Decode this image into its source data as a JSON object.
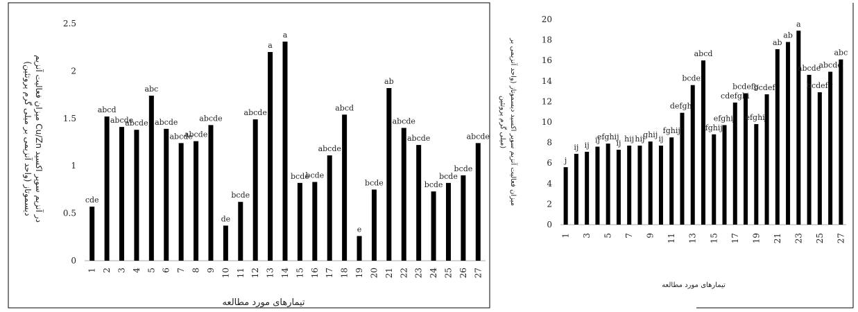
{
  "chart_data": [
    {
      "type": "bar",
      "categories": [
        "1",
        "2",
        "3",
        "4",
        "5",
        "6",
        "7",
        "8",
        "9",
        "10",
        "11",
        "12",
        "13",
        "14",
        "15",
        "16",
        "17",
        "18",
        "19",
        "20",
        "21",
        "22",
        "23",
        "24",
        "25",
        "26",
        "27"
      ],
      "values": [
        0.57,
        1.52,
        1.41,
        1.38,
        1.74,
        1.39,
        1.24,
        1.26,
        1.43,
        0.37,
        0.62,
        1.49,
        2.2,
        2.31,
        0.82,
        0.83,
        1.11,
        1.54,
        0.26,
        0.75,
        1.82,
        1.4,
        1.22,
        0.73,
        0.82,
        0.9,
        1.24
      ],
      "labels": [
        "cde",
        "abcd",
        "abcde",
        "abcde",
        "abc",
        "abcde",
        "abcde",
        "abcde",
        "abcde",
        "de",
        "bcde",
        "abcde",
        "a",
        "a",
        "bcde",
        "bcde",
        "abcde",
        "abcd",
        "e",
        "bcde",
        "ab",
        "abcde",
        "abcde",
        "bcde",
        "bcde",
        "bcde",
        "abcde"
      ],
      "ylim": [
        0,
        2.5
      ],
      "yticks": [
        "0",
        "0.5",
        "1",
        "1.5",
        "2",
        "2.5"
      ],
      "ylabel_line1": "میزان فعالیت آنزیم Cu/Zn در آنزیم سوپر اکسید",
      "ylabel_line2": "دیسموتاز (واحد آنزیمی بر میلی گرم پروتئین)",
      "xlabel": "تیمارهای مورد مطالعه",
      "grid": false,
      "bar_color": "#000000"
    },
    {
      "type": "bar",
      "categories": [
        "1",
        "2",
        "3",
        "4",
        "5",
        "6",
        "7",
        "8",
        "9",
        "10",
        "11",
        "12",
        "13",
        "14",
        "15",
        "16",
        "17",
        "18",
        "19",
        "20",
        "21",
        "22",
        "23",
        "24",
        "25",
        "26",
        "27"
      ],
      "values": [
        5.6,
        6.9,
        7.1,
        7.6,
        7.9,
        7.3,
        7.7,
        7.7,
        8.1,
        7.7,
        8.5,
        10.9,
        13.6,
        16.0,
        8.8,
        9.7,
        11.9,
        12.8,
        9.8,
        12.7,
        17.1,
        17.8,
        18.9,
        14.6,
        12.9,
        14.9,
        16.1
      ],
      "labels": [
        "j",
        "ij",
        "ij",
        "ij",
        "efghij",
        "ij",
        "hij",
        "hij",
        "ghij",
        "ij",
        "fghij",
        "defghi",
        "bcdef",
        "abcd",
        "fghij",
        "efghij",
        "cdefghi",
        "bcdefg",
        "efghij",
        "bcdefg",
        "ab",
        "ab",
        "a",
        "abcde",
        "bcdefg",
        "abcde",
        "abc"
      ],
      "ylim": [
        0,
        20
      ],
      "yticks": [
        "0",
        "2",
        "4",
        "6",
        "8",
        "10",
        "12",
        "14",
        "16",
        "18",
        "20"
      ],
      "xticks": [
        "1",
        "3",
        "5",
        "7",
        "9",
        "11",
        "13",
        "15",
        "17",
        "19",
        "21",
        "23",
        "25",
        "27"
      ],
      "ylabel_line1": "میزان فعالیت آنزیم سوپر اکسید دیسموتاز (واحد آنزیمی بر",
      "ylabel_line2": "میلی گرم پروتئین)",
      "xlabel": "تیمارهای مورد مطالعه",
      "grid": false,
      "bar_color": "#000000"
    }
  ]
}
